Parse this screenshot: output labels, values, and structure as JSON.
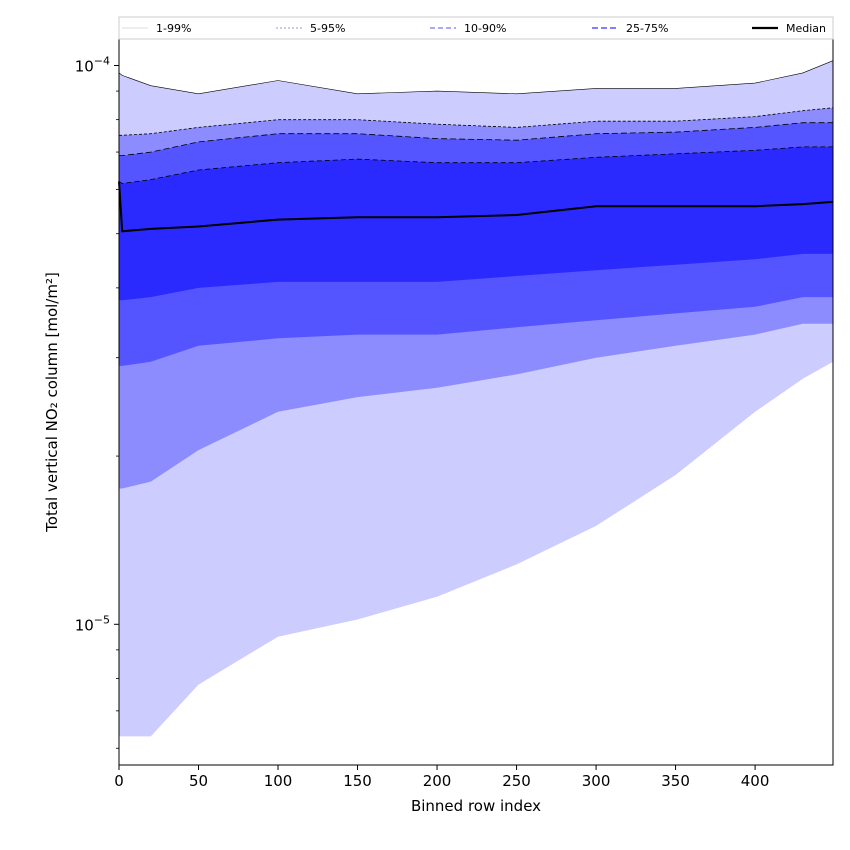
{
  "chart_data": {
    "type": "area",
    "xlabel": "Binned row index",
    "ylabel": "Total vertical NO₂ column [mol/m²]",
    "yscale": "log",
    "xlim": [
      0,
      449
    ],
    "ylim": [
      5.6e-06,
      0.000112
    ],
    "xticks": [
      0,
      50,
      100,
      150,
      200,
      250,
      300,
      350,
      400
    ],
    "yticks": [
      {
        "value": 1e-05,
        "mantissa": "10",
        "exponent": "−5"
      },
      {
        "value": 0.0001,
        "mantissa": "10",
        "exponent": "−4"
      }
    ],
    "legend": {
      "placement": "top",
      "entries": [
        "1-99%",
        "5-95%",
        "10-90%",
        "25-75%",
        "Median"
      ]
    },
    "x": [
      0,
      2,
      20,
      50,
      100,
      150,
      200,
      250,
      300,
      350,
      400,
      430,
      449
    ],
    "series": [
      {
        "name": "1-99%",
        "color": "#ccccff",
        "lower": [
          6.3e-06,
          6.3e-06,
          6.3e-06,
          7.8e-06,
          9.5e-06,
          1.02e-05,
          1.12e-05,
          1.28e-05,
          1.5e-05,
          1.85e-05,
          2.4e-05,
          2.75e-05,
          2.95e-05
        ],
        "upper": [
          9.7e-05,
          9.6e-05,
          9.2e-05,
          8.9e-05,
          9.4e-05,
          8.9e-05,
          9e-05,
          8.9e-05,
          9.1e-05,
          9.1e-05,
          9.3e-05,
          9.7e-05,
          0.000102
        ]
      },
      {
        "name": "5-95%",
        "color": "#8c8cff",
        "lower": [
          1.75e-05,
          1.75e-05,
          1.8e-05,
          2.05e-05,
          2.4e-05,
          2.55e-05,
          2.65e-05,
          2.8e-05,
          3e-05,
          3.15e-05,
          3.3e-05,
          3.45e-05,
          3.45e-05
        ],
        "upper": [
          7.5e-05,
          7.5e-05,
          7.55e-05,
          7.75e-05,
          8e-05,
          8e-05,
          7.85e-05,
          7.75e-05,
          7.95e-05,
          7.95e-05,
          8.1e-05,
          8.3e-05,
          8.4e-05
        ]
      },
      {
        "name": "10-90%",
        "color": "#5555ff",
        "lower": [
          2.9e-05,
          2.9e-05,
          2.95e-05,
          3.15e-05,
          3.25e-05,
          3.3e-05,
          3.3e-05,
          3.4e-05,
          3.5e-05,
          3.6e-05,
          3.7e-05,
          3.85e-05,
          3.85e-05
        ],
        "upper": [
          6.9e-05,
          6.9e-05,
          7e-05,
          7.3e-05,
          7.55e-05,
          7.55e-05,
          7.4e-05,
          7.35e-05,
          7.55e-05,
          7.6e-05,
          7.75e-05,
          7.9e-05,
          7.9e-05
        ]
      },
      {
        "name": "25-75%",
        "color": "#2a2aff",
        "lower": [
          3.8e-05,
          3.8e-05,
          3.85e-05,
          4e-05,
          4.1e-05,
          4.1e-05,
          4.1e-05,
          4.2e-05,
          4.3e-05,
          4.4e-05,
          4.5e-05,
          4.6e-05,
          4.6e-05
        ],
        "upper": [
          6.2e-05,
          6.15e-05,
          6.25e-05,
          6.5e-05,
          6.7e-05,
          6.8e-05,
          6.7e-05,
          6.7e-05,
          6.85e-05,
          6.95e-05,
          7.05e-05,
          7.15e-05,
          7.15e-05
        ]
      },
      {
        "name": "Median",
        "color": "#000000",
        "values": [
          6.2e-05,
          5.05e-05,
          5.1e-05,
          5.15e-05,
          5.3e-05,
          5.35e-05,
          5.35e-05,
          5.4e-05,
          5.6e-05,
          5.6e-05,
          5.6e-05,
          5.65e-05,
          5.7e-05
        ]
      }
    ]
  }
}
